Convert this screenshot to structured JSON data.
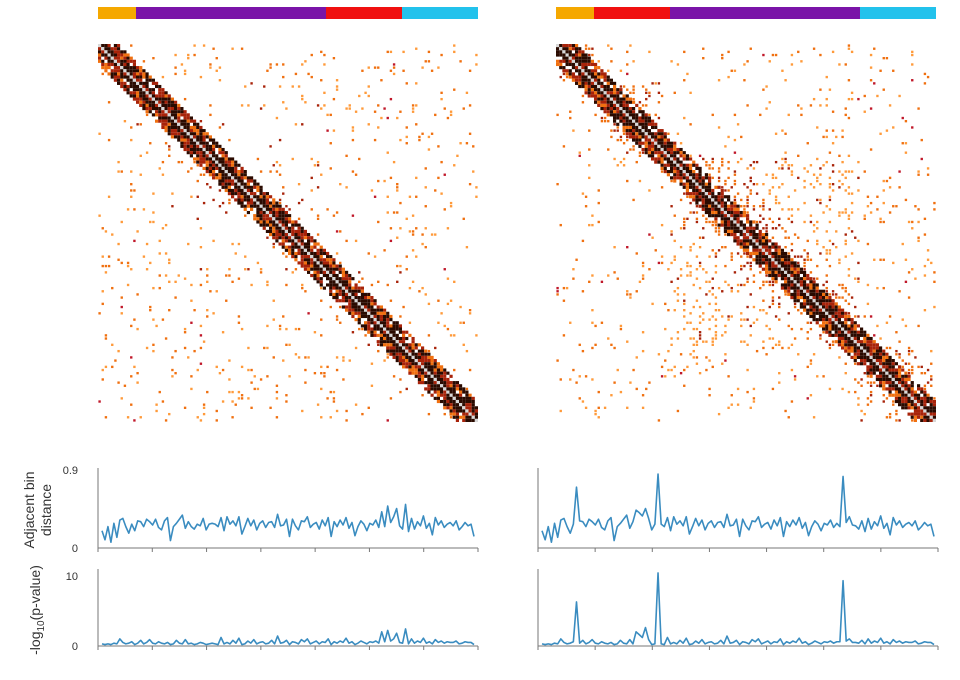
{
  "chart_data": [
    {
      "type": "heatmap",
      "panel": "left",
      "domain_bar": [
        {
          "color": "#f5a800",
          "fraction": 0.1
        },
        {
          "color": "#7a14a8",
          "fraction": 0.5
        },
        {
          "color": "#f01010",
          "fraction": 0.2
        },
        {
          "color": "#22c2ec",
          "fraction": 0.2
        }
      ],
      "domain_blocks": [
        [
          0,
          0.1
        ],
        [
          0.1,
          0.6
        ],
        [
          0.6,
          0.8
        ],
        [
          0.8,
          1.0
        ]
      ],
      "background_density": 0.055,
      "block_density": 0.055,
      "diagonal_band_bins": 6,
      "colors": {
        "diagonal": "#2a0a00",
        "near": "#a8230a",
        "mid": "#f07010",
        "far": "#ff9a3a",
        "rare": "#c0182a",
        "line": "#d8d8d8"
      }
    },
    {
      "type": "heatmap",
      "panel": "right",
      "domain_bar": [
        {
          "color": "#f5a800",
          "fraction": 0.1
        },
        {
          "color": "#f01010",
          "fraction": 0.2
        },
        {
          "color": "#7a14a8",
          "fraction": 0.5
        },
        {
          "color": "#22c2ec",
          "fraction": 0.2
        }
      ],
      "domain_blocks": [
        [
          0,
          0.1
        ],
        [
          0.1,
          0.3
        ],
        [
          0.3,
          0.8
        ],
        [
          0.8,
          1.0
        ]
      ],
      "background_density": 0.045,
      "block_density": 0.2,
      "diagonal_band_bins": 6,
      "colors": {
        "diagonal": "#2a0a00",
        "near": "#a8230a",
        "mid": "#f07010",
        "far": "#ff9a3a",
        "rare": "#c0182a",
        "line": "#d8d8d8"
      }
    },
    {
      "type": "line",
      "panel": "left",
      "ylabel": "Adjacent bin\ndistance",
      "ylim": [
        0,
        0.9
      ],
      "yticks": [
        "0",
        "0.9"
      ],
      "color": "#3a8cc0",
      "values": [
        0.21,
        0.1,
        0.26,
        0.07,
        0.3,
        0.13,
        0.34,
        0.36,
        0.26,
        0.18,
        0.29,
        0.21,
        0.33,
        0.32,
        0.26,
        0.35,
        0.32,
        0.28,
        0.35,
        0.25,
        0.22,
        0.33,
        0.37,
        0.09,
        0.26,
        0.3,
        0.35,
        0.4,
        0.24,
        0.32,
        0.26,
        0.23,
        0.29,
        0.27,
        0.36,
        0.22,
        0.29,
        0.3,
        0.29,
        0.26,
        0.37,
        0.21,
        0.38,
        0.29,
        0.33,
        0.27,
        0.38,
        0.17,
        0.26,
        0.36,
        0.27,
        0.34,
        0.22,
        0.3,
        0.33,
        0.25,
        0.31,
        0.32,
        0.25,
        0.41,
        0.27,
        0.28,
        0.35,
        0.14,
        0.35,
        0.27,
        0.22,
        0.33,
        0.32,
        0.38,
        0.25,
        0.29,
        0.31,
        0.23,
        0.34,
        0.27,
        0.37,
        0.14,
        0.32,
        0.26,
        0.34,
        0.28,
        0.37,
        0.24,
        0.31,
        0.15,
        0.26,
        0.33,
        0.29,
        0.21,
        0.3,
        0.28,
        0.34,
        0.25,
        0.44,
        0.26,
        0.51,
        0.31,
        0.38,
        0.48,
        0.27,
        0.23,
        0.53,
        0.2,
        0.36,
        0.23,
        0.32,
        0.27,
        0.39,
        0.24,
        0.3,
        0.16,
        0.37,
        0.28,
        0.33,
        0.25,
        0.29,
        0.31,
        0.27,
        0.33,
        0.22,
        0.26,
        0.31,
        0.27,
        0.29,
        0.14
      ]
    },
    {
      "type": "line",
      "panel": "right",
      "ylim": [
        0,
        0.9
      ],
      "color": "#3a8cc0",
      "values": [
        0.21,
        0.1,
        0.26,
        0.07,
        0.3,
        0.13,
        0.34,
        0.36,
        0.26,
        0.18,
        0.29,
        0.74,
        0.33,
        0.32,
        0.26,
        0.35,
        0.32,
        0.28,
        0.35,
        0.25,
        0.22,
        0.33,
        0.37,
        0.09,
        0.26,
        0.3,
        0.35,
        0.4,
        0.24,
        0.32,
        0.46,
        0.43,
        0.39,
        0.48,
        0.36,
        0.22,
        0.29,
        0.9,
        0.29,
        0.26,
        0.37,
        0.21,
        0.38,
        0.29,
        0.33,
        0.27,
        0.38,
        0.17,
        0.26,
        0.36,
        0.27,
        0.34,
        0.22,
        0.3,
        0.33,
        0.25,
        0.31,
        0.32,
        0.25,
        0.41,
        0.27,
        0.28,
        0.35,
        0.14,
        0.35,
        0.27,
        0.22,
        0.33,
        0.32,
        0.38,
        0.25,
        0.29,
        0.31,
        0.23,
        0.34,
        0.27,
        0.37,
        0.14,
        0.32,
        0.26,
        0.34,
        0.28,
        0.37,
        0.24,
        0.31,
        0.15,
        0.26,
        0.33,
        0.29,
        0.21,
        0.3,
        0.28,
        0.34,
        0.25,
        0.3,
        0.26,
        0.87,
        0.31,
        0.38,
        0.28,
        0.27,
        0.23,
        0.33,
        0.2,
        0.36,
        0.23,
        0.32,
        0.27,
        0.39,
        0.24,
        0.3,
        0.16,
        0.37,
        0.28,
        0.33,
        0.25,
        0.29,
        0.31,
        0.27,
        0.33,
        0.22,
        0.26,
        0.31,
        0.27,
        0.29,
        0.14
      ]
    },
    {
      "type": "line",
      "panel": "left",
      "ylabel": "-log10(p-value)",
      "ylim": [
        0,
        10
      ],
      "yticks": [
        "0",
        "10"
      ],
      "color": "#3a8cc0",
      "values": [
        0.3,
        0.2,
        0.3,
        0.2,
        0.4,
        0.3,
        1.0,
        0.5,
        0.3,
        0.4,
        0.6,
        0.2,
        0.4,
        0.8,
        0.3,
        0.5,
        0.9,
        0.4,
        0.3,
        0.6,
        0.4,
        0.3,
        0.5,
        0.2,
        0.3,
        0.8,
        0.4,
        0.3,
        0.9,
        0.3,
        0.4,
        0.2,
        0.3,
        0.5,
        0.4,
        0.2,
        0.3,
        0.4,
        0.3,
        0.2,
        1.2,
        0.3,
        0.5,
        0.3,
        0.8,
        0.4,
        1.1,
        0.2,
        0.3,
        0.7,
        0.4,
        0.9,
        0.3,
        0.5,
        0.6,
        0.3,
        0.4,
        0.8,
        0.3,
        1.4,
        0.4,
        0.5,
        0.8,
        0.2,
        0.6,
        0.5,
        0.3,
        0.9,
        0.6,
        1.0,
        0.3,
        0.5,
        0.7,
        0.3,
        0.6,
        0.5,
        1.0,
        0.2,
        0.6,
        0.4,
        0.7,
        0.5,
        1.1,
        0.4,
        0.6,
        0.2,
        0.4,
        0.7,
        0.5,
        0.3,
        0.6,
        0.5,
        0.7,
        0.4,
        2.0,
        0.6,
        2.2,
        0.7,
        1.0,
        1.8,
        0.5,
        0.4,
        2.4,
        0.3,
        1.0,
        0.4,
        0.7,
        0.5,
        1.1,
        0.4,
        0.6,
        0.3,
        0.9,
        0.5,
        0.7,
        0.4,
        0.6,
        0.5,
        0.5,
        0.7,
        0.3,
        0.4,
        0.6,
        0.5,
        0.5,
        0.2
      ]
    },
    {
      "type": "line",
      "panel": "right",
      "ylim": [
        0,
        10
      ],
      "color": "#3a8cc0",
      "values": [
        0.3,
        0.2,
        0.3,
        0.2,
        0.4,
        0.3,
        1.0,
        0.5,
        0.3,
        0.4,
        0.6,
        6.2,
        0.4,
        0.8,
        0.3,
        0.5,
        0.9,
        0.4,
        0.3,
        0.6,
        0.4,
        0.3,
        0.5,
        0.2,
        0.3,
        0.8,
        0.4,
        0.3,
        0.9,
        0.3,
        2.0,
        1.6,
        1.2,
        2.6,
        0.9,
        0.2,
        0.3,
        10.3,
        0.3,
        0.2,
        1.2,
        0.3,
        0.5,
        0.3,
        0.8,
        0.4,
        1.1,
        0.2,
        0.3,
        0.7,
        0.4,
        0.9,
        0.3,
        0.5,
        0.6,
        0.3,
        0.4,
        0.8,
        0.3,
        1.4,
        0.4,
        0.5,
        0.8,
        0.2,
        0.6,
        0.5,
        0.3,
        0.9,
        0.6,
        1.0,
        0.3,
        0.5,
        0.7,
        0.3,
        0.6,
        0.5,
        1.0,
        0.2,
        0.6,
        0.4,
        0.7,
        0.5,
        1.1,
        0.4,
        0.6,
        0.2,
        0.4,
        0.7,
        0.5,
        0.3,
        0.6,
        0.5,
        0.7,
        0.4,
        0.6,
        0.6,
        9.2,
        0.7,
        1.0,
        0.5,
        0.5,
        0.4,
        0.8,
        0.3,
        1.0,
        0.4,
        0.7,
        0.5,
        1.1,
        0.4,
        0.6,
        0.3,
        0.9,
        0.5,
        0.7,
        0.4,
        0.6,
        0.5,
        0.5,
        0.7,
        0.3,
        0.4,
        0.6,
        0.5,
        0.5,
        0.2
      ]
    }
  ]
}
